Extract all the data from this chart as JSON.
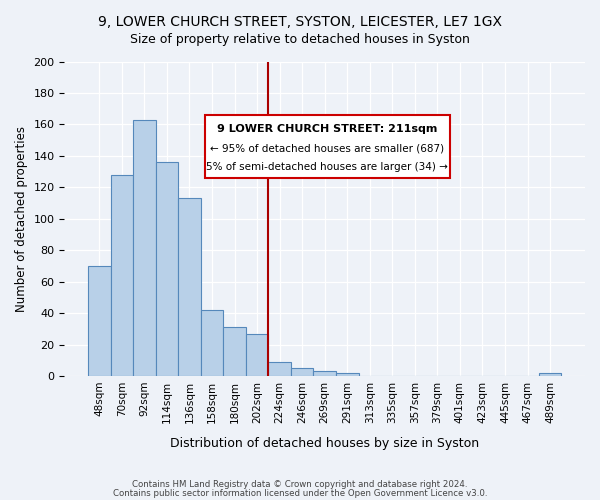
{
  "title1": "9, LOWER CHURCH STREET, SYSTON, LEICESTER, LE7 1GX",
  "title2": "Size of property relative to detached houses in Syston",
  "xlabel": "Distribution of detached houses by size in Syston",
  "ylabel": "Number of detached properties",
  "bin_labels": [
    "48sqm",
    "70sqm",
    "92sqm",
    "114sqm",
    "136sqm",
    "158sqm",
    "180sqm",
    "202sqm",
    "224sqm",
    "246sqm",
    "269sqm",
    "291sqm",
    "313sqm",
    "335sqm",
    "357sqm",
    "379sqm",
    "401sqm",
    "423sqm",
    "445sqm",
    "467sqm",
    "489sqm"
  ],
  "bar_values": [
    70,
    128,
    163,
    136,
    113,
    42,
    31,
    27,
    9,
    5,
    3,
    2,
    0,
    0,
    0,
    0,
    0,
    0,
    0,
    0,
    2
  ],
  "bar_color": "#b8d0e8",
  "bar_edge_color": "#5588bb",
  "vline_x_index": 7.5,
  "annotation_title": "9 LOWER CHURCH STREET: 211sqm",
  "annotation_line1": "← 95% of detached houses are smaller (687)",
  "annotation_line2": "5% of semi-detached houses are larger (34) →",
  "annotation_box_edge": "#cc0000",
  "vline_color": "#aa0000",
  "ylim": [
    0,
    200
  ],
  "yticks": [
    0,
    20,
    40,
    60,
    80,
    100,
    120,
    140,
    160,
    180,
    200
  ],
  "footnote1": "Contains HM Land Registry data © Crown copyright and database right 2024.",
  "footnote2": "Contains public sector information licensed under the Open Government Licence v3.0.",
  "bg_color": "#eef2f8"
}
